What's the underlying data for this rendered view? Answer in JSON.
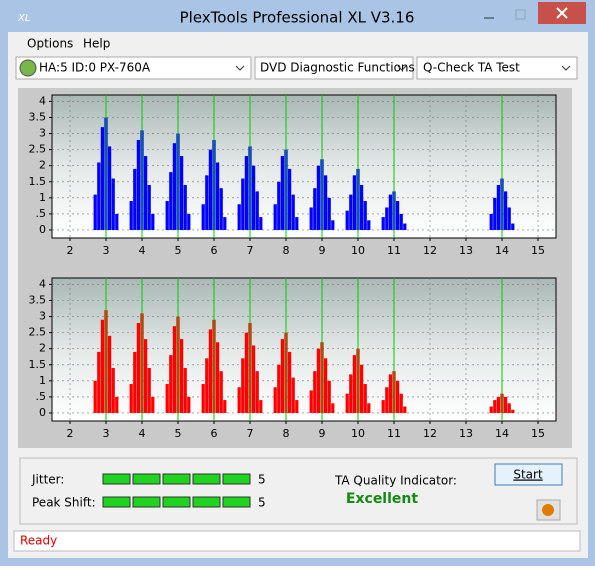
{
  "window": {
    "title": "PlexTools Professional XL V3.16",
    "menu": [
      "Options",
      "Help"
    ],
    "drive": "HA:5 ID:0  PX-760A",
    "function": "DVD Diagnostic Functions",
    "test": "Q-Check TA Test",
    "jitter_label": "Jitter:",
    "jitter": 5,
    "peak_shift_label": "Peak Shift:",
    "peak_shift": 5,
    "quality_label": "TA Quality Indicator:",
    "quality": "Excellent",
    "start": "Start",
    "status": "Ready"
  },
  "chart_data": [
    {
      "type": "bar",
      "color": "#0000ff",
      "marker_color": "#00cc00",
      "grid": true,
      "xlim": [
        1.5,
        15.5
      ],
      "ylim": [
        -0.25,
        4.2
      ],
      "xticks": [
        2,
        3,
        4,
        5,
        6,
        7,
        8,
        9,
        10,
        11,
        12,
        13,
        14,
        15
      ],
      "yticks": [
        0,
        {
          "value": 0.5,
          "label": ".5"
        },
        1,
        1.5,
        2,
        2.5,
        3,
        3.5,
        4
      ],
      "markers": [
        3,
        4,
        5,
        6,
        7,
        8,
        9,
        10,
        11,
        14
      ],
      "x": [
        2.7,
        2.8,
        2.9,
        3,
        3.1,
        3.2,
        3.3,
        3.7,
        3.8,
        3.9,
        4,
        4.1,
        4.2,
        4.3,
        4.7,
        4.8,
        4.9,
        5,
        5.1,
        5.2,
        5.3,
        5.7,
        5.8,
        5.9,
        6,
        6.1,
        6.2,
        6.3,
        6.7,
        6.8,
        6.9,
        7,
        7.1,
        7.2,
        7.3,
        7.7,
        7.8,
        7.9,
        8,
        8.1,
        8.2,
        8.3,
        8.7,
        8.8,
        8.9,
        9,
        9.1,
        9.2,
        9.3,
        9.7,
        9.8,
        9.9,
        10,
        10.1,
        10.2,
        10.3,
        10.7,
        10.8,
        10.9,
        11,
        11.1,
        11.2,
        11.3,
        13.7,
        13.8,
        13.9,
        14,
        14.1,
        14.2,
        14.3
      ],
      "values": [
        1.1,
        2.1,
        3.2,
        3.5,
        2.6,
        1.6,
        0.5,
        0.9,
        1.9,
        2.8,
        3.1,
        2.3,
        1.4,
        0.5,
        0.9,
        1.8,
        2.7,
        3.0,
        2.3,
        1.4,
        0.5,
        0.8,
        1.7,
        2.5,
        2.8,
        2.1,
        1.3,
        0.4,
        0.8,
        1.6,
        2.3,
        2.6,
        2.0,
        1.2,
        0.4,
        0.8,
        1.5,
        2.3,
        2.5,
        1.9,
        1.1,
        0.4,
        0.7,
        1.3,
        2.0,
        2.2,
        1.7,
        1.0,
        0.3,
        0.6,
        1.1,
        1.7,
        1.9,
        1.4,
        0.9,
        0.3,
        0.4,
        0.7,
        1.1,
        1.2,
        0.9,
        0.5,
        0.2,
        0.5,
        1.0,
        1.4,
        1.6,
        1.2,
        0.7,
        0.2
      ]
    },
    {
      "type": "bar",
      "color": "#ff0000",
      "marker_color": "#00cc00",
      "grid": true,
      "xlim": [
        1.5,
        15.5
      ],
      "ylim": [
        -0.25,
        4.2
      ],
      "xticks": [
        2,
        3,
        4,
        5,
        6,
        7,
        8,
        9,
        10,
        11,
        12,
        13,
        14,
        15
      ],
      "yticks": [
        0,
        {
          "value": 0.5,
          "label": ".5"
        },
        1,
        1.5,
        2,
        2.5,
        3,
        3.5,
        4
      ],
      "markers": [
        3,
        4,
        5,
        6,
        7,
        8,
        9,
        10,
        11,
        14
      ],
      "x": [
        2.7,
        2.8,
        2.9,
        3,
        3.1,
        3.2,
        3.3,
        3.7,
        3.8,
        3.9,
        4,
        4.1,
        4.2,
        4.3,
        4.7,
        4.8,
        4.9,
        5,
        5.1,
        5.2,
        5.3,
        5.7,
        5.8,
        5.9,
        6,
        6.1,
        6.2,
        6.3,
        6.7,
        6.8,
        6.9,
        7,
        7.1,
        7.2,
        7.3,
        7.7,
        7.8,
        7.9,
        8,
        8.1,
        8.2,
        8.3,
        8.7,
        8.8,
        8.9,
        9,
        9.1,
        9.2,
        9.3,
        9.7,
        9.8,
        9.9,
        10,
        10.1,
        10.2,
        10.3,
        10.7,
        10.8,
        10.9,
        11,
        11.1,
        11.2,
        11.3,
        13.7,
        13.8,
        13.9,
        14,
        14.1,
        14.2,
        14.3
      ],
      "values": [
        1.0,
        1.9,
        2.9,
        3.2,
        2.4,
        1.4,
        0.5,
        0.9,
        1.9,
        2.8,
        3.1,
        2.3,
        1.4,
        0.5,
        0.9,
        1.8,
        2.7,
        3.0,
        2.3,
        1.4,
        0.5,
        0.9,
        1.7,
        2.6,
        2.9,
        2.2,
        1.3,
        0.4,
        0.8,
        1.7,
        2.5,
        2.8,
        2.1,
        1.3,
        0.4,
        0.8,
        1.5,
        2.3,
        2.5,
        1.9,
        1.1,
        0.4,
        0.7,
        1.3,
        2.0,
        2.2,
        1.7,
        1.0,
        0.3,
        0.6,
        1.2,
        1.8,
        2.0,
        1.5,
        0.9,
        0.3,
        0.4,
        0.8,
        1.2,
        1.3,
        1.0,
        0.6,
        0.2,
        0.2,
        0.4,
        0.5,
        0.6,
        0.5,
        0.3,
        0.1
      ]
    }
  ]
}
